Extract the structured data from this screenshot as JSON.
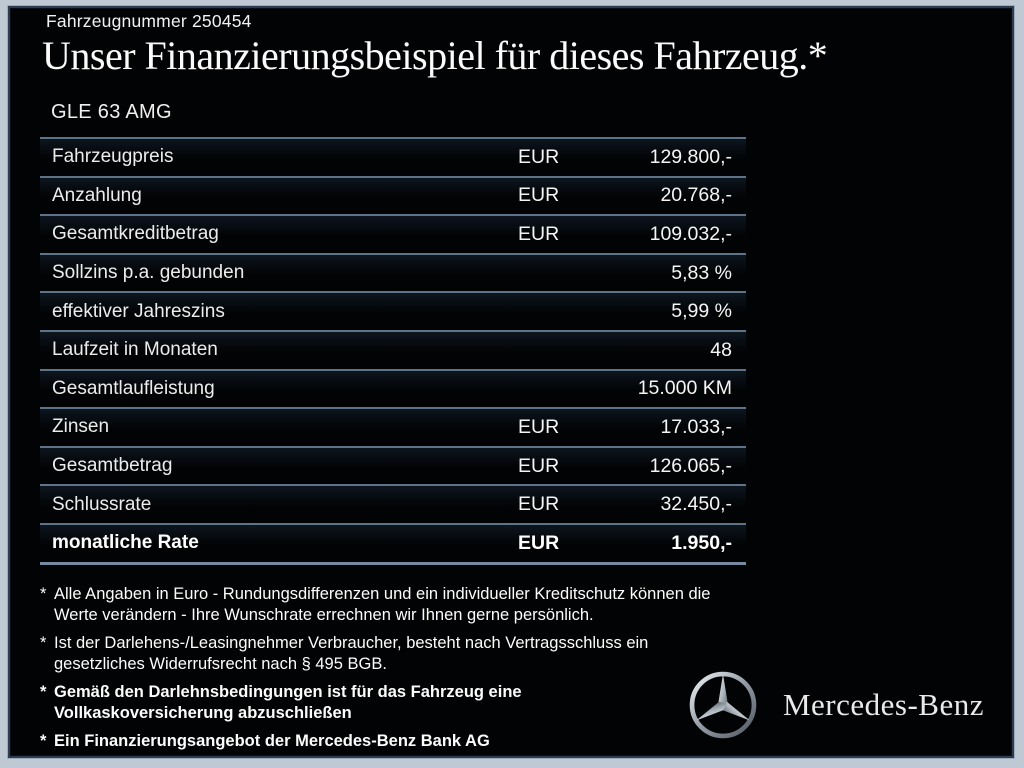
{
  "header": {
    "vehicle_number": "Fahrzeugnummer 250454",
    "title": "Unser Finanzierungsbeispiel für dieses Fahrzeug.*",
    "model": "GLE 63 AMG"
  },
  "table": {
    "rows": [
      {
        "label": "Fahrzeugpreis",
        "currency": "EUR",
        "value": "129.800,-",
        "bold": false
      },
      {
        "label": "Anzahlung",
        "currency": "EUR",
        "value": "20.768,-",
        "bold": false
      },
      {
        "label": "Gesamtkreditbetrag",
        "currency": "EUR",
        "value": "109.032,-",
        "bold": false
      },
      {
        "label": "Sollzins p.a. gebunden",
        "currency": "",
        "value": "5,83 %",
        "bold": false
      },
      {
        "label": "effektiver Jahreszins",
        "currency": "",
        "value": "5,99 %",
        "bold": false
      },
      {
        "label": "Laufzeit in Monaten",
        "currency": "",
        "value": "48",
        "bold": false
      },
      {
        "label": "Gesamtlaufleistung",
        "currency": "",
        "value": "15.000 KM",
        "bold": false
      },
      {
        "label": "Zinsen",
        "currency": "EUR",
        "value": "17.033,-",
        "bold": false
      },
      {
        "label": "Gesamtbetrag",
        "currency": "EUR",
        "value": "126.065,-",
        "bold": false
      },
      {
        "label": "Schlussrate",
        "currency": "EUR",
        "value": "32.450,-",
        "bold": false
      },
      {
        "label": "monatliche Rate",
        "currency": "EUR",
        "value": "1.950,-",
        "bold": true
      }
    ]
  },
  "footnotes": {
    "marker": "*",
    "items": [
      {
        "text": "Alle Angaben in Euro - Rundungsdifferenzen und ein individueller Kreditschutz können die\nWerte verändern - Ihre Wunschrate errechnen wir Ihnen gerne persönlich.",
        "bold": false
      },
      {
        "text": "Ist der Darlehens-/Leasingnehmer Verbraucher, besteht nach Vertragsschluss ein\ngesetzliches Widerrufsrecht nach § 495 BGB.",
        "bold": false
      },
      {
        "text": "Gemäß den Darlehnsbedingungen ist für das Fahrzeug eine\nVollkaskoversicherung abzuschließen",
        "bold": true
      },
      {
        "text": "Ein Finanzierungsangebot der Mercedes-Benz Bank AG",
        "bold": true
      }
    ]
  },
  "branding": {
    "wordmark": "Mercedes-Benz",
    "logo_icon": "mercedes-star-icon"
  },
  "colors": {
    "background": "#020304",
    "outer_frame": "#bfc9d3",
    "separator": "#5e7288",
    "text": "#f2f2f2"
  }
}
